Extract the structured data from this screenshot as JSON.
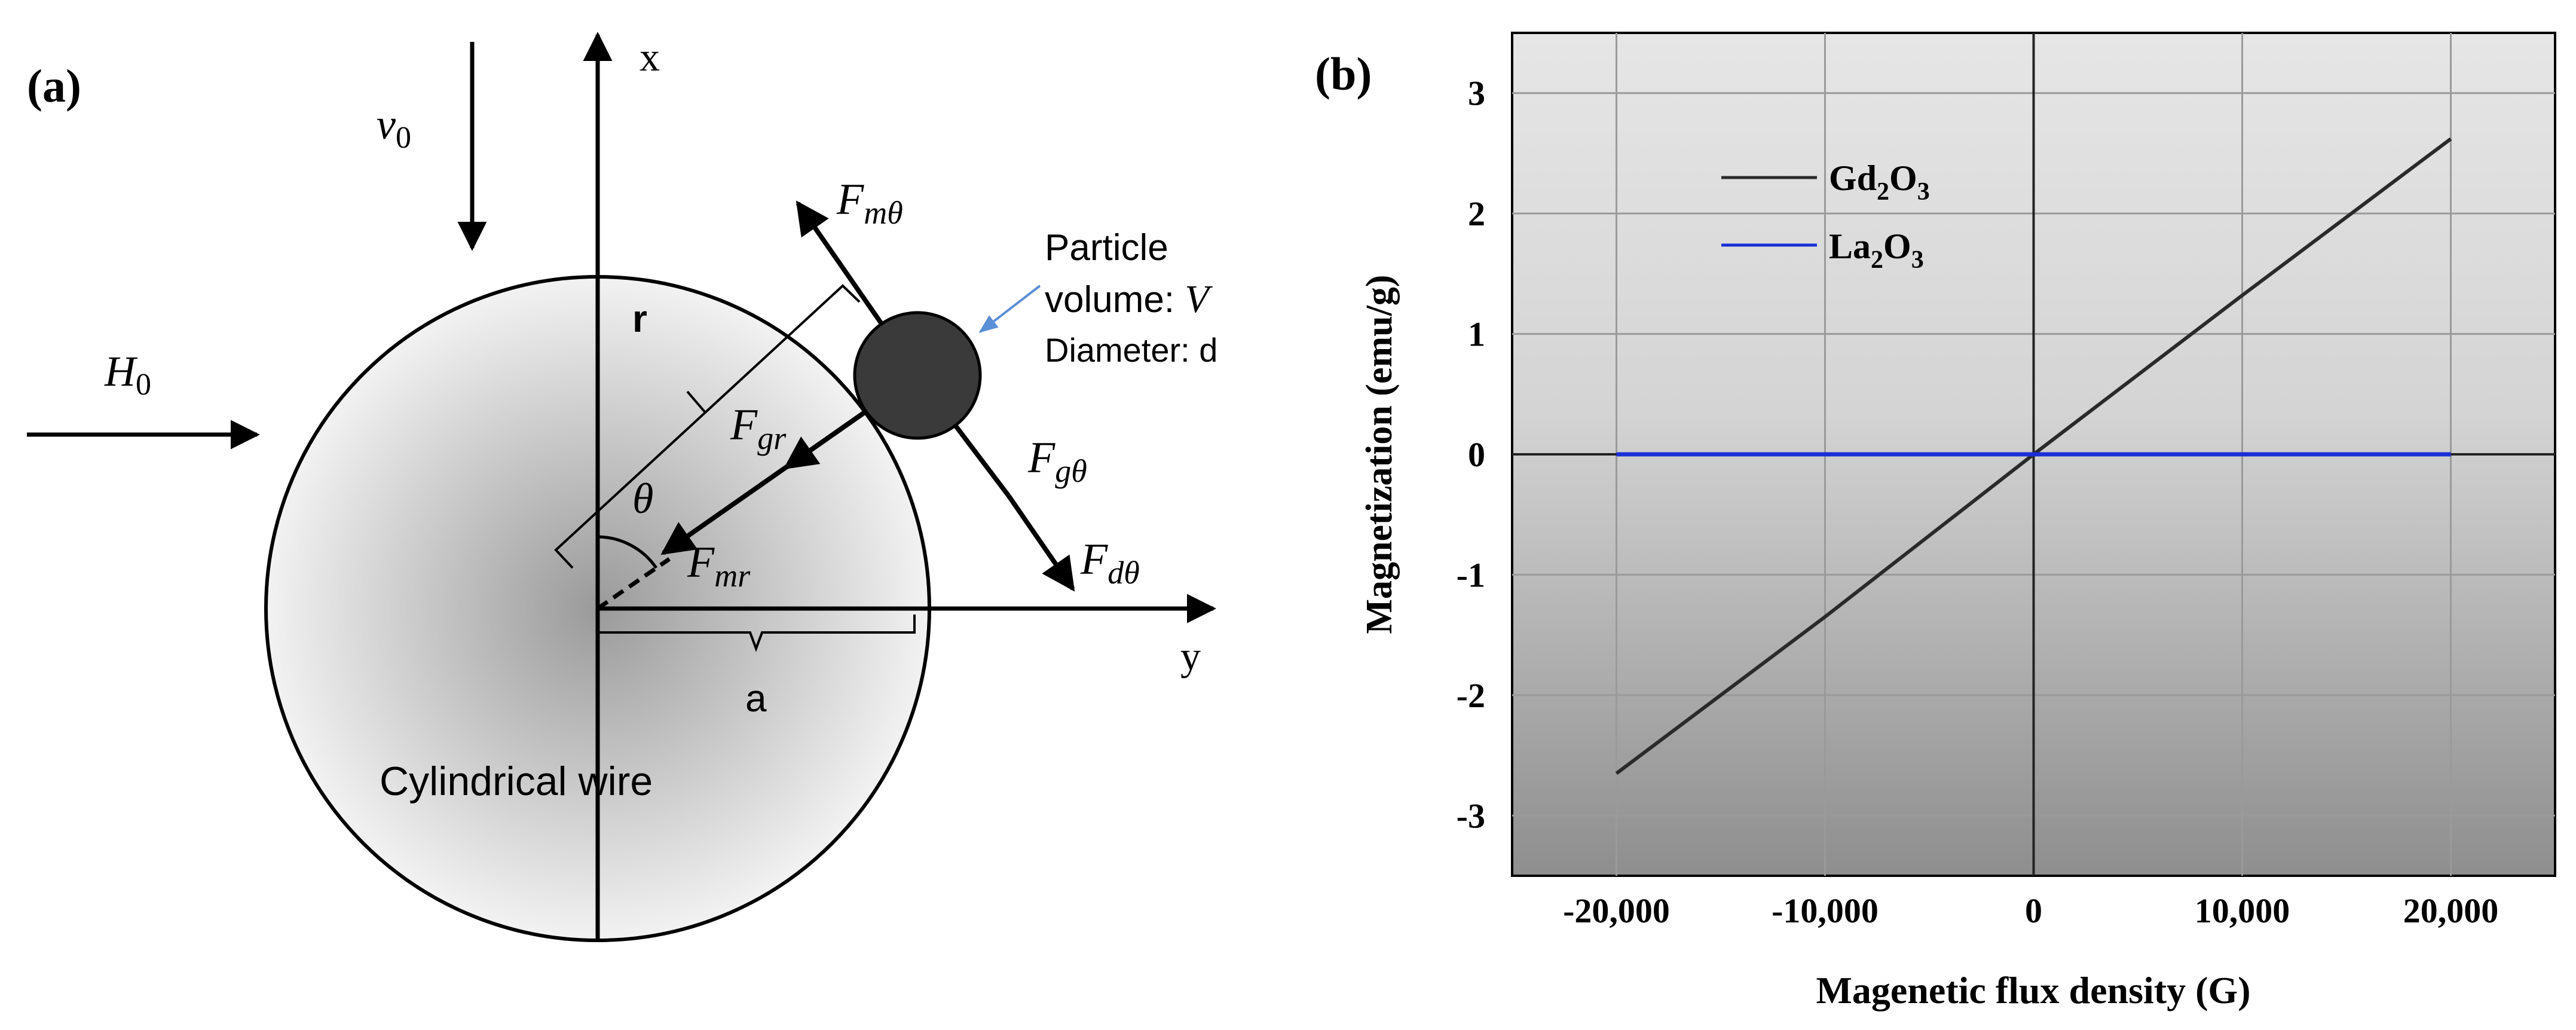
{
  "panel_a": {
    "label": "(a)",
    "x_axis": "x",
    "y_axis": "y",
    "v0": {
      "sym": "v",
      "sub": "0"
    },
    "H0": {
      "sym": "H",
      "sub": "0"
    },
    "r_label": "r",
    "theta": "θ",
    "a_label": "a",
    "wire_label": "Cylindrical wire",
    "particle": {
      "line1": "Particle",
      "line2_prefix": "volume: ",
      "line2_sym": "V",
      "line3": "Diameter: d"
    },
    "forces": {
      "Fmtheta": {
        "sym": "F",
        "sub": "mθ"
      },
      "Fgr": {
        "sym": "F",
        "sub": "gr"
      },
      "Fgtheta": {
        "sym": "F",
        "sub": "gθ"
      },
      "Fdtheta": {
        "sym": "F",
        "sub": "dθ"
      },
      "Fmr": {
        "sym": "F",
        "sub": "mr"
      }
    },
    "colors": {
      "particle": "#3a3a3a",
      "wire_center": "#9a9a9a",
      "wire_edge": "#f2f2f2",
      "pointer": "#5b8fd6"
    }
  },
  "panel_b": {
    "label": "(b)"
  },
  "chart_data": {
    "type": "line",
    "title": "",
    "xlabel": "Magenetic flux density (G)",
    "ylabel": "Magnetization (emu/g)",
    "xlim": [
      -25000,
      25000
    ],
    "ylim": [
      -3.5,
      3.5
    ],
    "x_ticks": [
      -20000,
      -10000,
      0,
      10000,
      20000
    ],
    "x_tick_labels": [
      "-20,000",
      "-10,000",
      "0",
      "10,000",
      "20,000"
    ],
    "y_ticks": [
      -3,
      -2,
      -1,
      0,
      1,
      2,
      3
    ],
    "y_tick_labels": [
      "-3",
      "-2",
      "-1",
      "0",
      "1",
      "2",
      "3"
    ],
    "grid": true,
    "legend_position": "top-left",
    "series": [
      {
        "name": "Gd2O3",
        "name_parts": [
          "Gd",
          "2",
          "O",
          "3"
        ],
        "color": "#2a2a2a",
        "x": [
          -20000,
          -10000,
          0,
          10000,
          20000
        ],
        "y": [
          -2.65,
          -1.35,
          0,
          1.32,
          2.62
        ]
      },
      {
        "name": "La2O3",
        "name_parts": [
          "La",
          "2",
          "O",
          "3"
        ],
        "color": "#1a2fd6",
        "x": [
          -20000,
          -10000,
          0,
          10000,
          20000
        ],
        "y": [
          0,
          0,
          0,
          0,
          0
        ]
      }
    ]
  }
}
